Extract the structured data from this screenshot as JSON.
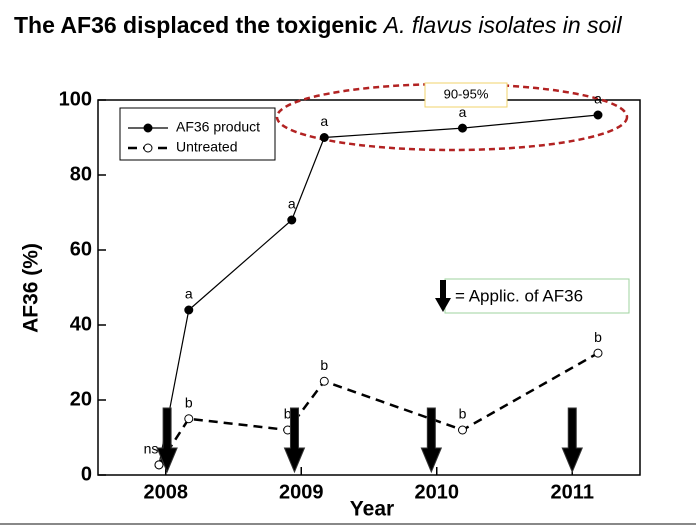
{
  "chart_data": {
    "type": "line",
    "title_parts": [
      "The AF36 displaced the toxigenic ",
      "A. flavus isolates in soil"
    ],
    "x_label": "Year",
    "y_label": "AF36 (%)",
    "xlim": [
      2007.5,
      2011.5
    ],
    "xticks": [
      2008,
      2009,
      2010,
      2011
    ],
    "ylim": [
      0,
      100
    ],
    "yticks": [
      0,
      20,
      40,
      60,
      80,
      100
    ],
    "series": [
      {
        "name": "AF36 product",
        "color": "#000000",
        "style": "solid",
        "marker": "filled",
        "x": [
          2007.95,
          2008.17,
          2008.93,
          2009.17,
          2010.19,
          2011.19
        ],
        "values": [
          2.7,
          44,
          68,
          90,
          92.5,
          96
        ],
        "point_labels": [
          null,
          "a",
          "a",
          "a",
          "a",
          "a"
        ]
      },
      {
        "name": "Untreated",
        "color": "#000000",
        "style": "dashed",
        "marker": "open",
        "x": [
          2007.95,
          2008.17,
          2008.9,
          2009.17,
          2010.19,
          2011.19
        ],
        "values": [
          2.7,
          15,
          12,
          25,
          12,
          32.5
        ],
        "point_labels": [
          "ns",
          "b",
          "b",
          "b",
          "b",
          "b"
        ]
      }
    ],
    "application_arrows": [
      2008.01,
      2008.95,
      2009.96,
      2011.0
    ],
    "application_legend": "= Applic. of AF36",
    "highlight_label": "90-95%"
  }
}
